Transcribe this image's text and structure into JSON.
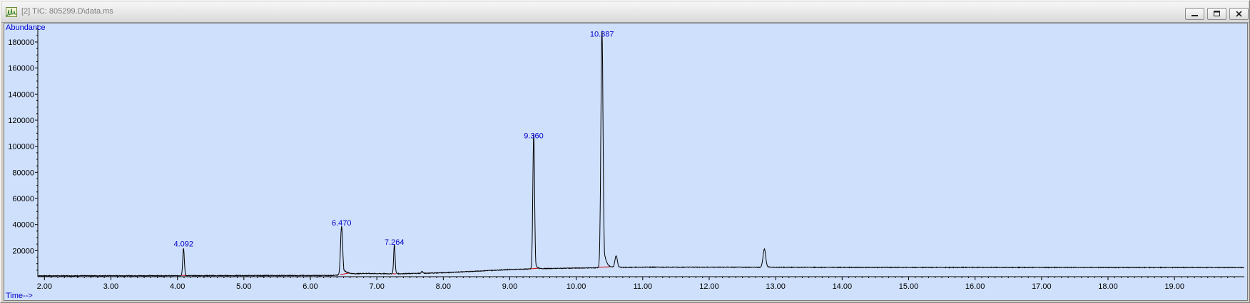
{
  "window": {
    "title": "[2] TIC: 805299.D\\data.ms",
    "icon": "chromatogram-app-icon",
    "buttons": {
      "minimize": "minimize-icon",
      "restore": "restore-icon",
      "close": "close-icon"
    }
  },
  "colors": {
    "plot_background": "#cfe0fc",
    "trace": "#000000",
    "peak_label": "#0000cc",
    "axis_label": "#0000cc",
    "baseline_marker": "#cc0000"
  },
  "chart_data": {
    "type": "line",
    "title": "",
    "ylabel": "Abundance",
    "xlabel": "Time-->",
    "xlim": [
      1.9,
      20.05
    ],
    "ylim": [
      0,
      192000
    ],
    "x_ticks": [
      2.0,
      3.0,
      4.0,
      5.0,
      6.0,
      7.0,
      8.0,
      9.0,
      10.0,
      11.0,
      12.0,
      13.0,
      14.0,
      15.0,
      16.0,
      17.0,
      18.0,
      19.0
    ],
    "x_tick_labels": [
      "2.00",
      "3.00",
      "4.00",
      "5.00",
      "6.00",
      "7.00",
      "8.00",
      "9.00",
      "10.00",
      "11.00",
      "12.00",
      "13.00",
      "14.00",
      "15.00",
      "16.00",
      "17.00",
      "18.00",
      "19.00"
    ],
    "y_ticks": [
      20000,
      40000,
      60000,
      80000,
      100000,
      120000,
      140000,
      160000,
      180000
    ],
    "y_tick_labels": [
      "20000",
      "40000",
      "60000",
      "80000",
      "100000",
      "120000",
      "140000",
      "160000",
      "180000"
    ],
    "grid": false,
    "series": [
      {
        "name": "TIC",
        "baseline": [
          [
            1.9,
            700
          ],
          [
            6.3,
            900
          ],
          [
            6.8,
            2500
          ],
          [
            7.3,
            2200
          ],
          [
            8.0,
            3000
          ],
          [
            9.0,
            5500
          ],
          [
            9.5,
            6200
          ],
          [
            10.0,
            6600
          ],
          [
            11.0,
            7300
          ],
          [
            12.0,
            7300
          ],
          [
            13.0,
            7200
          ],
          [
            15.0,
            7100
          ],
          [
            17.0,
            7100
          ],
          [
            20.05,
            7000
          ]
        ],
        "peaks": [
          {
            "rt": 4.092,
            "height": 21000,
            "width": 0.012,
            "tail": 0.01
          },
          {
            "rt": 6.47,
            "height": 37000,
            "width": 0.016,
            "tail": 0.06
          },
          {
            "rt": 7.264,
            "height": 22500,
            "width": 0.011,
            "tail": 0.015
          },
          {
            "rt": 7.68,
            "height": 1500,
            "width": 0.01,
            "tail": 0.01
          },
          {
            "rt": 9.36,
            "height": 104000,
            "width": 0.013,
            "tail": 0.02
          },
          {
            "rt": 10.387,
            "height": 182000,
            "width": 0.016,
            "tail": 0.035
          },
          {
            "rt": 10.6,
            "height": 9000,
            "width": 0.018,
            "tail": 0.03
          },
          {
            "rt": 12.83,
            "height": 14000,
            "width": 0.02,
            "tail": 0.03
          }
        ]
      }
    ],
    "peak_labels": [
      {
        "rt": 4.092,
        "text": "4.092",
        "y": 21000
      },
      {
        "rt": 6.47,
        "text": "6.470",
        "y": 37000
      },
      {
        "rt": 7.264,
        "text": "7.264",
        "y": 22500
      },
      {
        "rt": 9.36,
        "text": "9.360",
        "y": 104000
      },
      {
        "rt": 10.387,
        "text": "10.387",
        "y": 182000
      }
    ],
    "integration_baselines": [
      {
        "x1": 4.06,
        "x2": 4.14,
        "y1": 1000,
        "y2": 900
      },
      {
        "x1": 6.45,
        "x2": 6.6,
        "y1": 1500,
        "y2": 3000
      },
      {
        "x1": 7.24,
        "x2": 7.29,
        "y1": 2200,
        "y2": 2200
      },
      {
        "x1": 9.25,
        "x2": 9.42,
        "y1": 5800,
        "y2": 6400
      },
      {
        "x1": 10.33,
        "x2": 10.5,
        "y1": 7200,
        "y2": 7600
      }
    ]
  }
}
